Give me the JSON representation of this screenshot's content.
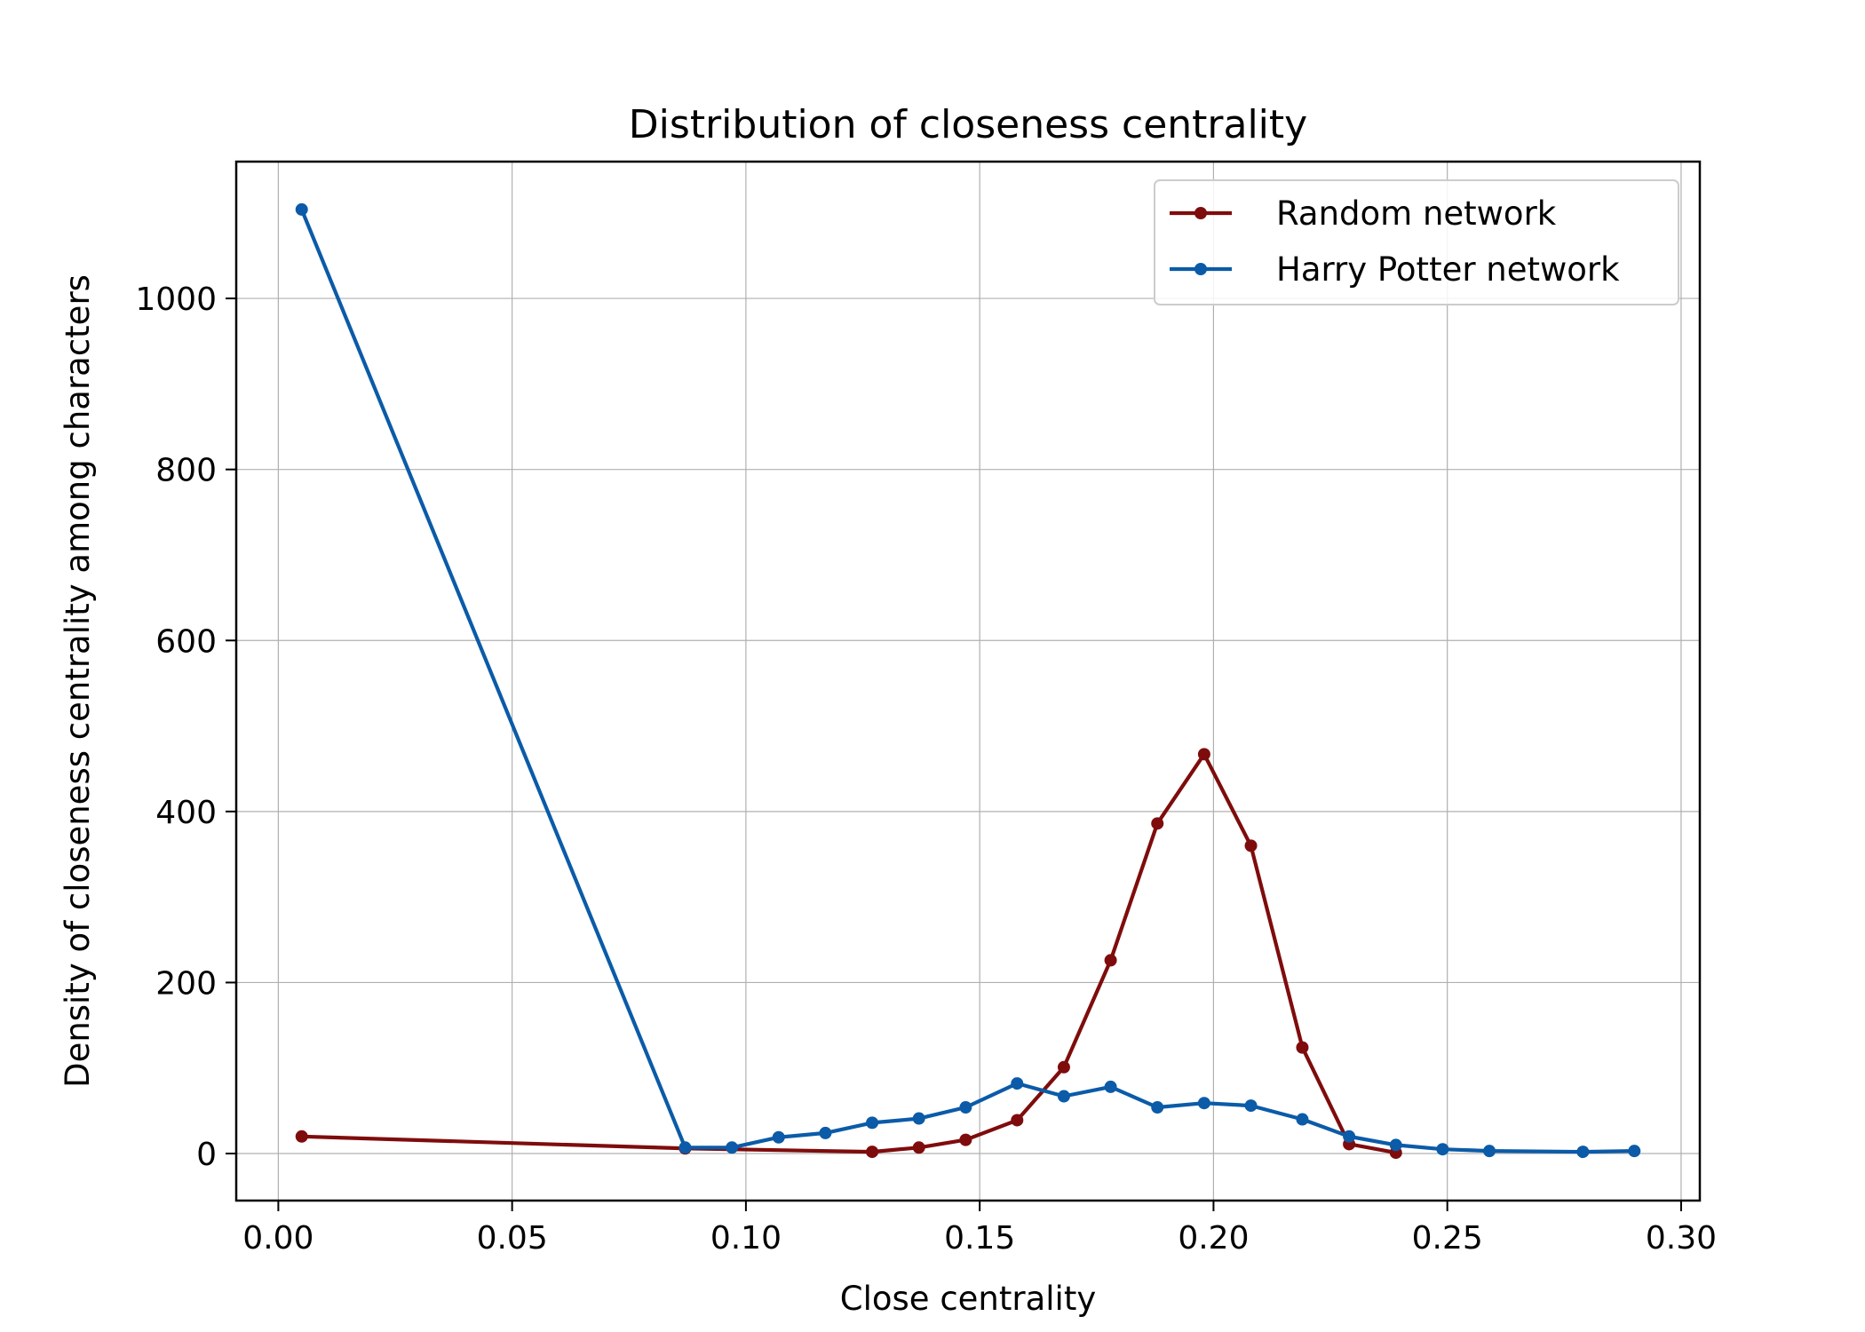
{
  "chart_data": {
    "type": "line",
    "title": "Distribution of closeness centrality",
    "xlabel": "Close centrality",
    "ylabel": "Density of closeness centrality among characters",
    "xlim": [
      -0.009,
      0.304
    ],
    "ylim": [
      -55,
      1160
    ],
    "xticks": [
      0.0,
      0.05,
      0.1,
      0.15,
      0.2,
      0.25,
      0.3
    ],
    "xtick_labels": [
      "0.00",
      "0.05",
      "0.10",
      "0.15",
      "0.20",
      "0.25",
      "0.30"
    ],
    "yticks": [
      0,
      200,
      400,
      600,
      800,
      1000
    ],
    "ytick_labels": [
      "0",
      "200",
      "400",
      "600",
      "800",
      "1000"
    ],
    "grid": true,
    "legend_position": "top-right",
    "series": [
      {
        "name": "Random network",
        "color": "#7f0c0c",
        "x": [
          0.005,
          0.087,
          0.127,
          0.137,
          0.147,
          0.158,
          0.168,
          0.178,
          0.188,
          0.198,
          0.208,
          0.219,
          0.229,
          0.239
        ],
        "y": [
          20,
          6,
          2,
          7,
          16,
          39,
          101,
          226,
          386,
          467,
          360,
          124,
          11,
          1
        ]
      },
      {
        "name": "Harry Potter network",
        "color": "#0b5ba8",
        "x": [
          0.005,
          0.087,
          0.097,
          0.107,
          0.117,
          0.127,
          0.137,
          0.147,
          0.158,
          0.168,
          0.178,
          0.188,
          0.198,
          0.208,
          0.219,
          0.229,
          0.239,
          0.249,
          0.259,
          0.279,
          0.29
        ],
        "y": [
          1104,
          7,
          7,
          19,
          24,
          36,
          41,
          54,
          82,
          67,
          78,
          54,
          59,
          56,
          40,
          20,
          10,
          5,
          3,
          2,
          3
        ]
      }
    ]
  }
}
